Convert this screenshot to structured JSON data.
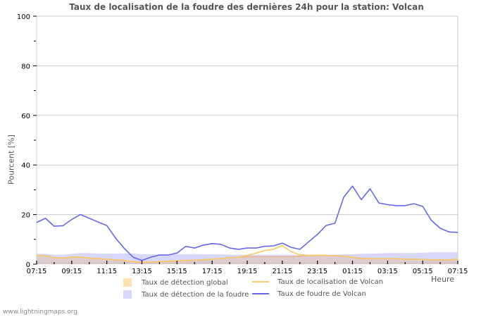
{
  "header": {
    "title": "Taux de localisation de la foudre des dernières 24h pour la station: Volcan"
  },
  "footer": {
    "site": "www.lightningmaps.org"
  },
  "legend": {
    "items": [
      {
        "label": "Taux de détection global",
        "kind": "area",
        "color": "#fde3b0"
      },
      {
        "label": "Taux de détection de la foudre",
        "kind": "area",
        "color": "#d8d8fc"
      },
      {
        "label": "Taux de localisation de Volcan",
        "kind": "line",
        "color": "#f9c860"
      },
      {
        "label": "Taux de foudre de Volcan",
        "kind": "line",
        "color": "#6666ee"
      }
    ]
  },
  "chart_data": {
    "type": "line",
    "title": "Taux de localisation de la foudre des dernières 24h pour la station: Volcan",
    "xlabel": "Heure",
    "ylabel": "Pourcent   [%]",
    "ylim": [
      0,
      100
    ],
    "yticks": [
      0,
      20,
      40,
      60,
      80,
      100
    ],
    "xtick_labels": [
      "07:15",
      "09:15",
      "11:15",
      "13:15",
      "15:15",
      "17:15",
      "19:15",
      "21:15",
      "23:15",
      "01:15",
      "03:15",
      "05:15",
      "07:15"
    ],
    "grid": true,
    "legend_position": "bottom",
    "x": [
      "07:15",
      "07:45",
      "08:15",
      "08:45",
      "09:15",
      "09:45",
      "10:15",
      "10:45",
      "11:15",
      "11:45",
      "12:15",
      "12:45",
      "13:15",
      "13:45",
      "14:15",
      "14:45",
      "15:15",
      "15:45",
      "16:15",
      "16:45",
      "17:15",
      "17:45",
      "18:15",
      "18:45",
      "19:15",
      "19:45",
      "20:15",
      "20:45",
      "21:15",
      "21:45",
      "22:15",
      "22:45",
      "23:15",
      "23:45",
      "00:15",
      "00:45",
      "01:15",
      "01:45",
      "02:15",
      "02:45",
      "03:15",
      "03:45",
      "04:15",
      "04:45",
      "05:15",
      "05:45",
      "06:15",
      "06:45",
      "07:15"
    ],
    "series": [
      {
        "name": "Taux de détection de la foudre",
        "type": "area",
        "color": "#d8d8fc",
        "values": [
          4.2,
          4.2,
          3.8,
          3.8,
          4.2,
          4.5,
          4.5,
          4.3,
          4.3,
          4.3,
          4.3,
          4.3,
          4.0,
          4.0,
          4.0,
          4.0,
          4.0,
          4.0,
          4.0,
          4.0,
          4.0,
          4.0,
          3.8,
          3.8,
          3.8,
          3.8,
          3.8,
          3.8,
          3.8,
          3.8,
          3.8,
          3.8,
          3.8,
          3.8,
          3.8,
          4.0,
          4.0,
          4.2,
          4.3,
          4.3,
          4.5,
          4.5,
          4.5,
          4.5,
          4.6,
          4.8,
          4.8,
          4.8,
          4.8
        ]
      },
      {
        "name": "Taux de détection global",
        "type": "area",
        "color": "#fde3b0",
        "values": [
          3.5,
          3.5,
          2.6,
          2.5,
          2.8,
          2.8,
          2.5,
          2.2,
          2.0,
          1.8,
          1.5,
          1.0,
          0.8,
          0.8,
          1.0,
          1.2,
          1.3,
          1.5,
          1.6,
          1.8,
          2.0,
          2.3,
          2.6,
          2.8,
          3.0,
          3.0,
          3.0,
          3.0,
          3.0,
          3.0,
          3.2,
          3.5,
          3.6,
          3.5,
          3.4,
          3.3,
          2.8,
          2.3,
          2.2,
          2.2,
          2.2,
          2.2,
          2.0,
          2.0,
          1.9,
          1.8,
          1.8,
          1.8,
          2.0
        ]
      },
      {
        "name": "Taux de localisation de Volcan",
        "type": "line",
        "color": "#f9c860",
        "values": [
          3.5,
          3.5,
          2.6,
          2.5,
          2.8,
          2.8,
          2.5,
          2.2,
          2.0,
          1.8,
          1.5,
          1.0,
          0.8,
          0.8,
          1.0,
          1.2,
          1.3,
          1.5,
          1.6,
          1.8,
          2.0,
          2.3,
          2.6,
          2.8,
          3.5,
          4.5,
          5.5,
          6.0,
          7.5,
          5.0,
          3.8,
          3.5,
          3.6,
          3.5,
          3.4,
          3.3,
          2.8,
          2.3,
          2.2,
          2.2,
          2.2,
          2.2,
          2.0,
          2.0,
          1.9,
          1.8,
          1.8,
          1.8,
          2.0
        ]
      },
      {
        "name": "Taux de foudre de Volcan",
        "type": "line",
        "color": "#6666ee",
        "values": [
          16.8,
          18.5,
          15.3,
          15.5,
          18.0,
          20.0,
          18.5,
          17.0,
          15.6,
          10.5,
          6.3,
          2.8,
          1.5,
          2.8,
          3.7,
          3.7,
          4.5,
          7.2,
          6.5,
          7.7,
          8.3,
          8.0,
          6.5,
          6.0,
          6.5,
          6.5,
          7.2,
          7.4,
          8.5,
          6.8,
          6.0,
          9.0,
          12.0,
          15.6,
          16.5,
          27.0,
          31.5,
          26.0,
          30.4,
          24.7,
          24.0,
          23.6,
          23.6,
          24.4,
          23.3,
          17.6,
          14.5,
          13.0,
          12.8
        ]
      }
    ]
  }
}
